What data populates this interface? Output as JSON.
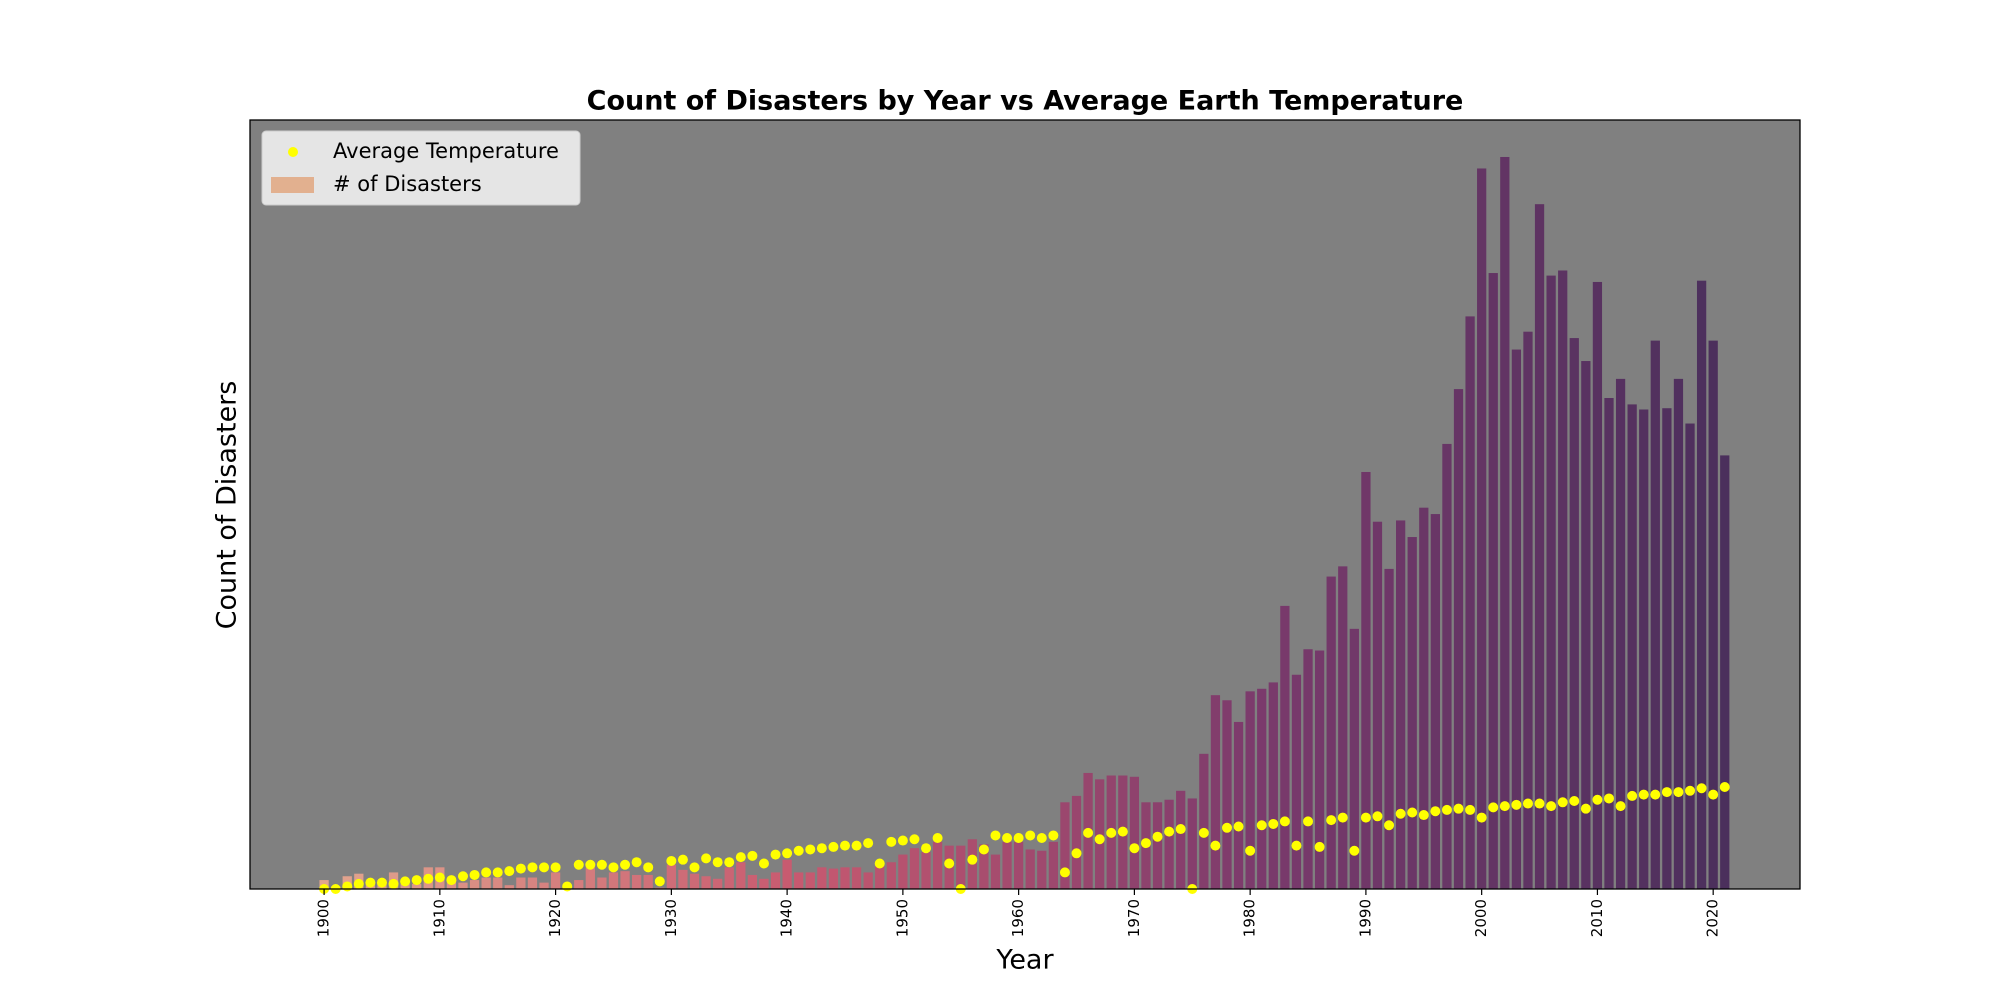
{
  "chart_data": {
    "type": "bar",
    "title": "Count of Disasters by Year vs Average Earth Temperature",
    "x_label": "Year",
    "y_label": "Count of Disasters",
    "x": [
      1900,
      1901,
      1902,
      1903,
      1904,
      1905,
      1906,
      1907,
      1908,
      1909,
      1910,
      1911,
      1912,
      1913,
      1914,
      1915,
      1916,
      1917,
      1918,
      1919,
      1920,
      1921,
      1922,
      1923,
      1924,
      1925,
      1926,
      1927,
      1928,
      1929,
      1930,
      1931,
      1932,
      1933,
      1934,
      1935,
      1936,
      1937,
      1938,
      1939,
      1940,
      1941,
      1942,
      1943,
      1944,
      1945,
      1946,
      1947,
      1948,
      1949,
      1950,
      1951,
      1952,
      1953,
      1954,
      1955,
      1956,
      1957,
      1958,
      1959,
      1960,
      1961,
      1962,
      1963,
      1964,
      1965,
      1966,
      1967,
      1968,
      1969,
      1970,
      1971,
      1972,
      1973,
      1974,
      1975,
      1976,
      1977,
      1978,
      1979,
      1980,
      1981,
      1982,
      1983,
      1984,
      1985,
      1986,
      1987,
      1988,
      1989,
      1990,
      1991,
      1992,
      1993,
      1994,
      1995,
      1996,
      1997,
      1998,
      1999,
      2000,
      2001,
      2002,
      2003,
      2004,
      2005,
      2006,
      2007,
      2008,
      2009,
      2010,
      2011,
      2012,
      2013,
      2014,
      2015,
      2016,
      2017,
      2018,
      2019,
      2020,
      2021
    ],
    "series": [
      {
        "name": "Average Temperature",
        "type": "scatter",
        "axis": "y2",
        "color": "#ffff00",
        "values": [
          0,
          0,
          2,
          4,
          5,
          5,
          4,
          6,
          7,
          8,
          9,
          7,
          10,
          11,
          13,
          13,
          14,
          16,
          17,
          17,
          17,
          2,
          19,
          19,
          19,
          17,
          19,
          21,
          17,
          6,
          22,
          23,
          17,
          24,
          21,
          21,
          25,
          26,
          20,
          27,
          28,
          30,
          31,
          32,
          33,
          34,
          34,
          36,
          20,
          37,
          38,
          39,
          32,
          40,
          20,
          0,
          23,
          31,
          42,
          40,
          40,
          42,
          40,
          42,
          13,
          28,
          44,
          39,
          44,
          45,
          32,
          36,
          41,
          45,
          47,
          0,
          44,
          34,
          48,
          49,
          30,
          50,
          51,
          53,
          34,
          53,
          33,
          54,
          56,
          30,
          56,
          57,
          50,
          59,
          60,
          58,
          61,
          62,
          63,
          62,
          56,
          64,
          65,
          66,
          67,
          67,
          65,
          68,
          69,
          63,
          70,
          71,
          65,
          73,
          74,
          74,
          76,
          76,
          77,
          79,
          74,
          80
        ]
      },
      {
        "name": "# of Disasters",
        "type": "bar",
        "color": "#e2b08f",
        "gradient": [
          "#e2a68e",
          "#c85a70",
          "#7b3a6c",
          "#4b2f5c"
        ],
        "values": [
          7,
          2,
          10,
          12,
          5,
          7,
          13,
          4,
          4,
          17,
          17,
          7,
          5,
          7,
          9,
          9,
          3,
          9,
          9,
          5,
          13,
          1,
          7,
          17,
          9,
          13,
          14,
          11,
          11,
          1,
          19,
          15,
          12,
          10,
          8,
          17,
          21,
          11,
          8,
          13,
          23,
          13,
          13,
          17,
          16,
          17,
          17,
          13,
          19,
          21,
          27,
          32,
          29,
          37,
          34,
          34,
          39,
          35,
          27,
          37,
          37,
          31,
          30,
          37,
          68,
          73,
          91,
          86,
          89,
          89,
          88,
          68,
          68,
          70,
          77,
          71,
          106,
          152,
          148,
          131,
          155,
          157,
          162,
          222,
          168,
          188,
          187,
          245,
          253,
          204,
          327,
          288,
          251,
          289,
          276,
          299,
          294,
          349,
          392,
          449,
          565,
          483,
          574,
          423,
          437,
          537,
          481,
          485,
          432,
          414,
          476,
          385,
          400,
          380,
          376,
          430,
          377,
          400,
          365,
          477,
          430,
          340
        ]
      }
    ],
    "xlim": [
      1893.6,
      2027.5
    ],
    "xticks": [
      1900,
      1910,
      1920,
      1930,
      1940,
      1950,
      1960,
      1970,
      1980,
      1990,
      2000,
      2010,
      2020
    ],
    "ylim": [
      0,
      603
    ],
    "y2lim": [
      0,
      603
    ],
    "background": "#808080",
    "legend": "upper left"
  }
}
